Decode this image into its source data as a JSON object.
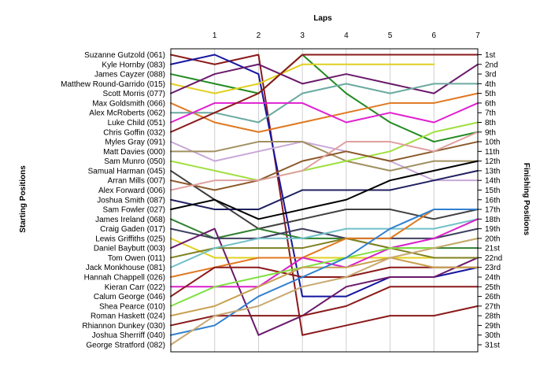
{
  "chart_data": {
    "type": "line",
    "title": "",
    "xlabel": "Laps",
    "ylabel_left": "Starting Positions",
    "ylabel_right": "Finishing Positions",
    "x": [
      0,
      1,
      2,
      3,
      4,
      5,
      6,
      7
    ],
    "x_tick_labels": [
      "1",
      "2",
      "3",
      "4",
      "5",
      "6",
      "7"
    ],
    "ylim": [
      1,
      31
    ],
    "y_reversed": true,
    "grid": "vertical",
    "starting_labels": [
      "Suzanne Gutzold (061)",
      "Kyle Hornby (083)",
      "James Cayzer (088)",
      "Matthew Round-Garrido (015)",
      "Scott Morris (077)",
      "Max Goldsmith (066)",
      "Alex McRoberts (062)",
      "Luke Child (051)",
      "Chris Goffin (032)",
      "Myles Gray (091)",
      "Matt Davies (000)",
      "Sam Munro (050)",
      "Samual Harman (045)",
      "Arran Mills (007)",
      "Alex Forward (006)",
      "Joshua Smith (087)",
      "Sam Fowler (027)",
      "James Ireland (068)",
      "Craig Gaden (017)",
      "Lewis Griffiths (025)",
      "Daniel Baybutt (003)",
      "Tom Owen (011)",
      "Jack Monkhouse (081)",
      "Hannah Chappell (026)",
      "Kieran Carr (022)",
      "Calum George (046)",
      "Shea Pearce (010)",
      "Roman Haskett (024)",
      "Rhiannon Dunkey (030)",
      "Joshua Sherriff (040)",
      "George Stratford (082)"
    ],
    "finishing_labels": [
      "1st",
      "2nd",
      "3rd",
      "4th",
      "5th",
      "6th",
      "7th",
      "8th",
      "9th",
      "10th",
      "11th",
      "12th",
      "13th",
      "14th",
      "15th",
      "16th",
      "17th",
      "18th",
      "19th",
      "20th",
      "21st",
      "22nd",
      "23rd",
      "24th",
      "25th",
      "26th",
      "27th",
      "28th",
      "29th",
      "30th",
      "31st"
    ],
    "series": [
      {
        "color": "#8b1a1a",
        "values": [
          1,
          2,
          1,
          30,
          29,
          28,
          28,
          27
        ]
      },
      {
        "color": "#1515a0",
        "values": [
          2,
          1,
          3,
          26,
          26,
          24,
          24,
          23
        ]
      },
      {
        "color": "#228b22",
        "values": [
          3,
          4,
          5,
          1,
          5,
          8,
          10,
          9
        ]
      },
      {
        "color": "#e0d020",
        "values": [
          4,
          5,
          4,
          2,
          2,
          2,
          2,
          null
        ]
      },
      {
        "color": "#6a1a6a",
        "values": [
          5,
          3,
          2,
          4,
          3,
          4,
          5,
          2
        ]
      },
      {
        "color": "#e07820",
        "values": [
          6,
          8,
          9,
          8,
          7,
          6,
          6,
          5
        ]
      },
      {
        "color": "#6aaaa0",
        "values": [
          7,
          7,
          8,
          5,
          4,
          5,
          4,
          4
        ]
      },
      {
        "color": "#e020d0",
        "values": [
          8,
          6,
          6,
          6,
          8,
          7,
          8,
          6
        ]
      },
      {
        "color": "#8b1a1a",
        "values": [
          9,
          7,
          5,
          1,
          1,
          1,
          1,
          1
        ]
      },
      {
        "color": "#c8a8d8",
        "values": [
          10,
          12,
          11,
          10,
          11,
          12,
          14,
          14
        ]
      },
      {
        "color": "#a09060",
        "values": [
          11,
          11,
          10,
          10,
          12,
          13,
          12,
          12
        ]
      },
      {
        "color": "#a0e040",
        "values": [
          12,
          13,
          14,
          13,
          12,
          11,
          9,
          8
        ]
      },
      {
        "color": "#404040",
        "values": [
          13,
          16,
          19,
          18,
          17,
          17,
          18,
          17
        ]
      },
      {
        "color": "#8b5a2a",
        "values": [
          14,
          15,
          14,
          12,
          11,
          12,
          11,
          10
        ]
      },
      {
        "color": "#e0a0a0",
        "values": [
          15,
          14,
          14,
          13,
          10,
          10,
          11,
          9
        ]
      },
      {
        "color": "#202060",
        "values": [
          16,
          17,
          17,
          15,
          15,
          15,
          14,
          13
        ]
      },
      {
        "color": "#000000",
        "values": [
          17,
          16,
          18,
          17,
          16,
          14,
          13,
          12
        ]
      },
      {
        "color": "#308030",
        "values": [
          18,
          20,
          19,
          20,
          20,
          21,
          21,
          21
        ]
      },
      {
        "color": "#404060",
        "values": [
          19,
          20,
          20,
          19,
          20,
          20,
          20,
          19
        ]
      },
      {
        "color": "#e0d020",
        "values": [
          20,
          22,
          22,
          22,
          22,
          22,
          22,
          22
        ]
      },
      {
        "color": "#6a1a6a",
        "values": [
          21,
          19,
          30,
          28,
          25,
          24,
          24,
          22
        ]
      },
      {
        "color": "#808020",
        "values": [
          22,
          21,
          21,
          21,
          20,
          21,
          22,
          22
        ]
      },
      {
        "color": "#70c0c8",
        "values": [
          23,
          21,
          20,
          20,
          19,
          19,
          19,
          18
        ]
      },
      {
        "color": "#e07820",
        "values": [
          24,
          23,
          22,
          22,
          20,
          20,
          17,
          17
        ]
      },
      {
        "color": "#d820c8",
        "values": [
          25,
          25,
          25,
          22,
          23,
          21,
          20,
          18
        ]
      },
      {
        "color": "#8b1a1a",
        "values": [
          26,
          23,
          23,
          24,
          24,
          23,
          23,
          23
        ]
      },
      {
        "color": "#80e040",
        "values": [
          27,
          25,
          24,
          23,
          22,
          21,
          21,
          20
        ]
      },
      {
        "color": "#c8a050",
        "values": [
          28,
          27,
          25,
          23,
          23,
          22,
          23,
          23
        ]
      },
      {
        "color": "#8b1a1a",
        "values": [
          29,
          28,
          28,
          28,
          27,
          25,
          25,
          25
        ]
      },
      {
        "color": "#3080d0",
        "values": [
          30,
          29,
          26,
          24,
          22,
          19,
          17,
          17
        ]
      },
      {
        "color": "#c8a870",
        "values": [
          31,
          28,
          27,
          25,
          24,
          22,
          21,
          20
        ]
      }
    ]
  }
}
